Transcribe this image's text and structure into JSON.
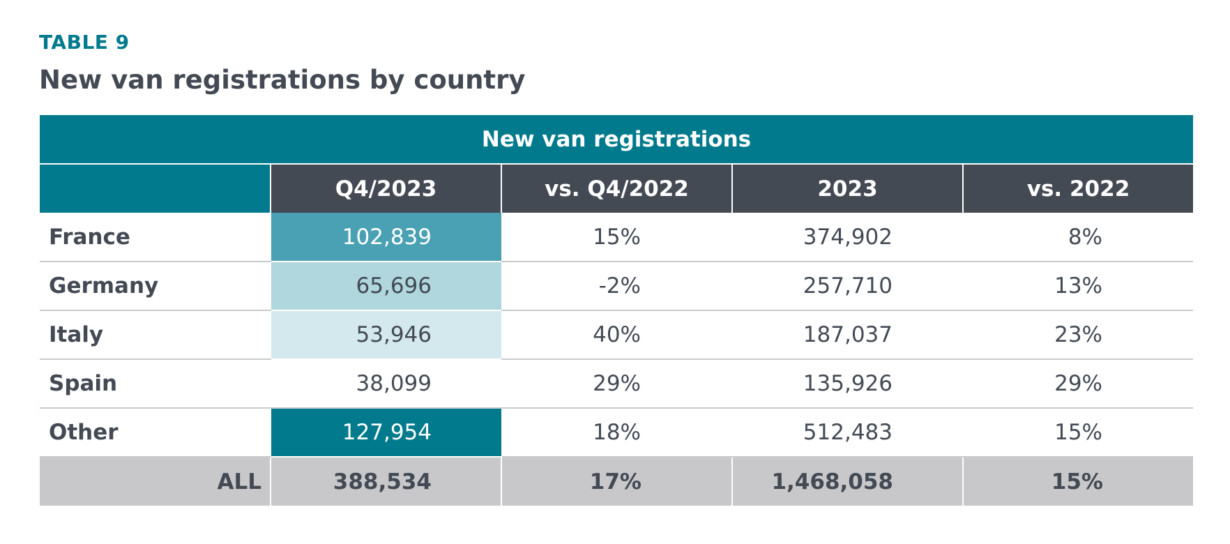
{
  "label": "TABLE 9",
  "title": "New van registrations by country",
  "table": {
    "span_header": "New van registrations",
    "columns": [
      "Q4/2023",
      "vs. Q4/2022",
      "2023",
      "vs. 2022"
    ],
    "rows": [
      {
        "country": "France",
        "q4_2023": "102,839",
        "vs_q4_2022": "15%",
        "y2023": "374,902",
        "vs_2022": "8%",
        "shade_color": "#4aa1b3"
      },
      {
        "country": "Germany",
        "q4_2023": "65,696",
        "vs_q4_2022": "-2%",
        "y2023": "257,710",
        "vs_2022": "13%",
        "shade_color": "#b0d7de"
      },
      {
        "country": "Italy",
        "q4_2023": "53,946",
        "vs_q4_2022": "40%",
        "y2023": "187,037",
        "vs_2022": "23%",
        "shade_color": "#d4e9ed"
      },
      {
        "country": "Spain",
        "q4_2023": "38,099",
        "vs_q4_2022": "29%",
        "y2023": "135,926",
        "vs_2022": "29%",
        "shade_color": "#ffffff"
      },
      {
        "country": "Other",
        "q4_2023": "127,954",
        "vs_q4_2022": "18%",
        "y2023": "512,483",
        "vs_2022": "15%",
        "shade_color": "#007a8c"
      }
    ],
    "total": {
      "country": "ALL",
      "q4_2023": "388,534",
      "vs_q4_2022": "17%",
      "y2023": "1,468,058",
      "vs_2022": "15%"
    }
  },
  "colors": {
    "accent": "#007a8c",
    "header_dark": "#434a54",
    "total_row": "#c8c8ca",
    "rule": "#c9cacc"
  }
}
